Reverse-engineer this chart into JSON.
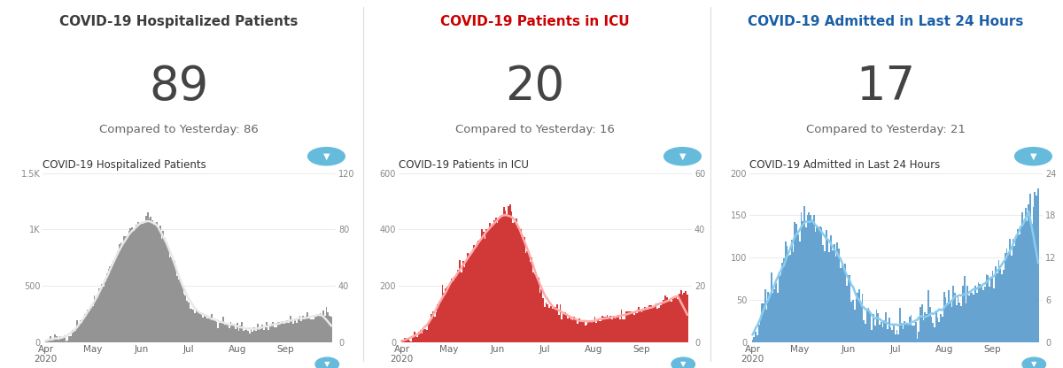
{
  "panel1": {
    "title": "COVID-19 Hospitalized Patients",
    "title_color": "#3d3d3d",
    "big_number": "89",
    "compare_text": "Compared to Yesterday: 86",
    "chart_title": "COVID-19 Hospitalized Patients",
    "bar_color": "#888888",
    "line_color": "#e8e8e8",
    "left_ylim": [
      0,
      1500
    ],
    "right_ylim": [
      0,
      120
    ],
    "left_ytick_vals": [
      0,
      500,
      1000,
      1500
    ],
    "left_ytick_labels": [
      "0",
      "500",
      "1K",
      "1.5K"
    ],
    "right_yticks": [
      0,
      40,
      80,
      120
    ]
  },
  "panel2": {
    "title": "COVID-19 Patients in ICU",
    "title_color": "#cc0000",
    "big_number": "20",
    "compare_text": "Compared to Yesterday: 16",
    "chart_title": "COVID-19 Patients in ICU",
    "bar_color": "#cc2222",
    "line_color": "#ffaaaa",
    "left_ylim": [
      0,
      600
    ],
    "right_ylim": [
      0,
      60
    ],
    "left_ytick_vals": [
      0,
      200,
      400,
      600
    ],
    "left_ytick_labels": [
      "0",
      "200",
      "400",
      "600"
    ],
    "right_yticks": [
      0,
      20,
      40,
      60
    ]
  },
  "panel3": {
    "title": "COVID-19 Admitted in Last 24 Hours",
    "title_color": "#1a5fa8",
    "big_number": "17",
    "compare_text": "Compared to Yesterday: 21",
    "chart_title": "COVID-19 Admitted in Last 24 Hours",
    "bar_color": "#5599cc",
    "line_color": "#88ccee",
    "left_ylim": [
      0,
      200
    ],
    "right_ylim": [
      0,
      24
    ],
    "left_ytick_vals": [
      0,
      50,
      100,
      150,
      200
    ],
    "left_ytick_labels": [
      "0",
      "50",
      "100",
      "150",
      "200"
    ],
    "right_yticks": [
      0,
      6,
      12,
      18,
      24
    ]
  },
  "bg_color": "#ffffff",
  "filter_btn_color": "#66bbdd",
  "num_points": 183,
  "month_positions": [
    0,
    30,
    61,
    91,
    122,
    153
  ],
  "month_labels": [
    "Apr\n2020",
    "May",
    "Jun",
    "Jul",
    "Aug",
    "Sep"
  ]
}
